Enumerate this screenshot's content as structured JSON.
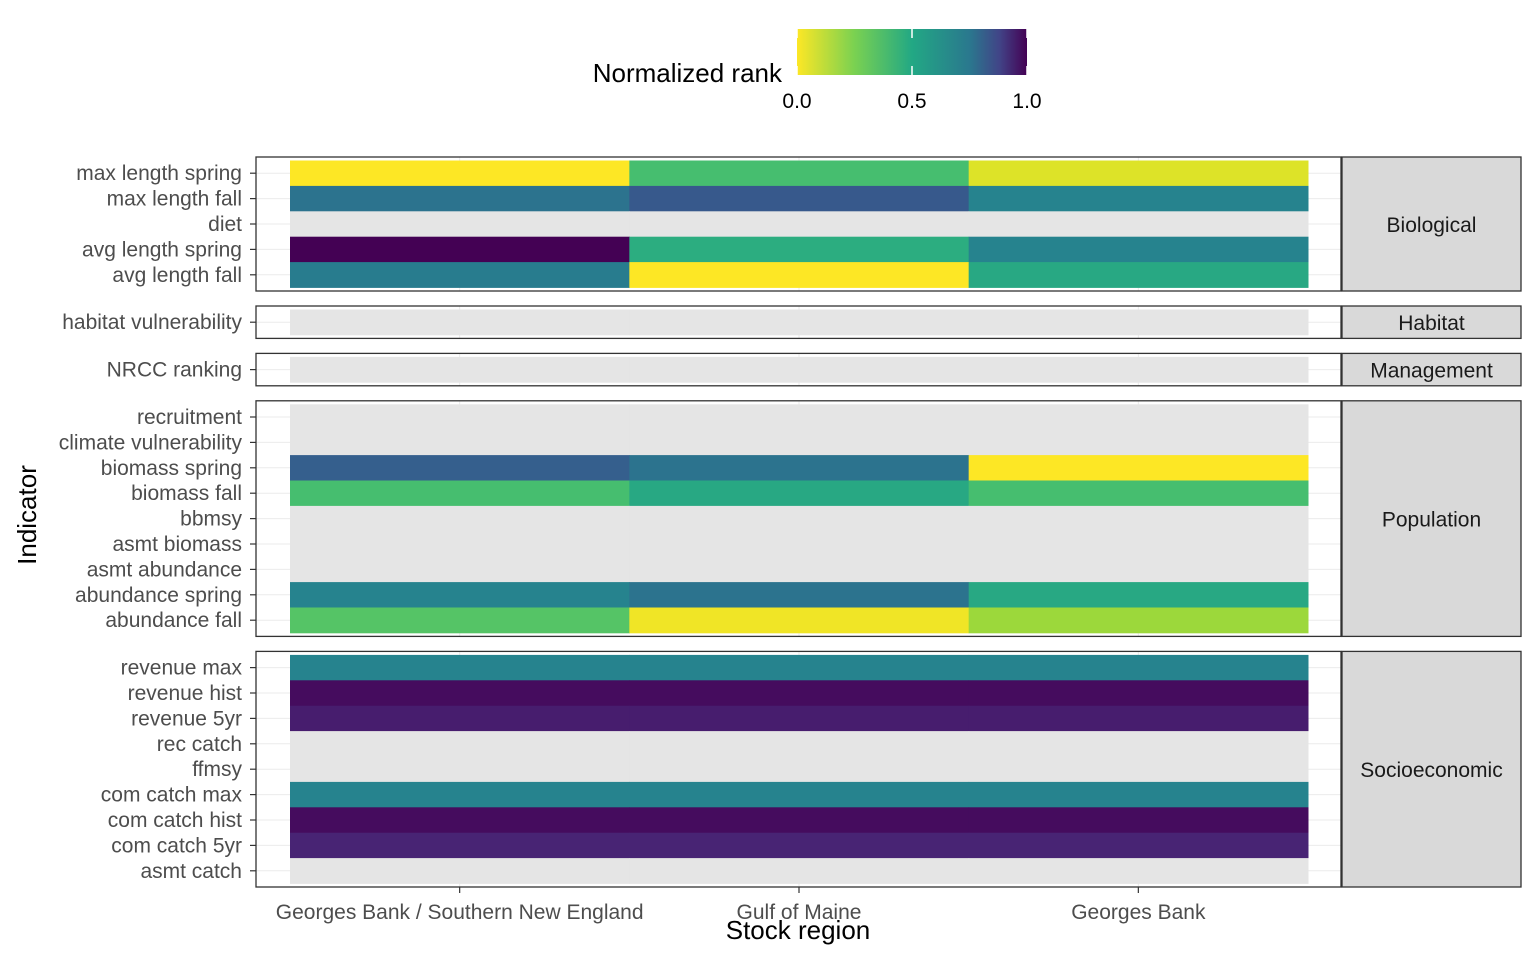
{
  "chart_data": {
    "type": "heatmap",
    "xlabel": "Stock region",
    "ylabel": "Indicator",
    "legend": {
      "title": "Normalized rank",
      "position": "top",
      "ticks": [
        "0.0",
        "0.5",
        "1.0"
      ],
      "scale": "viridis (reversed)",
      "range": [
        0,
        1
      ]
    },
    "missing_color": "#e5e5e5",
    "categories": [
      "Georges Bank / Southern New England",
      "Gulf of Maine",
      "Georges Bank"
    ],
    "facets": [
      {
        "label": "Biological",
        "rows": [
          {
            "label": "max length spring",
            "values": [
              0.0,
              0.3,
              0.05
            ]
          },
          {
            "label": "max length fall",
            "values": [
              0.62,
              0.72,
              0.55
            ]
          },
          {
            "label": "diet",
            "values": [
              null,
              null,
              null
            ]
          },
          {
            "label": "avg length spring",
            "values": [
              1.0,
              0.38,
              0.55
            ]
          },
          {
            "label": "avg length fall",
            "values": [
              0.58,
              0.0,
              0.4
            ]
          }
        ]
      },
      {
        "label": "Habitat",
        "rows": [
          {
            "label": "habitat vulnerability",
            "values": [
              null,
              null,
              null
            ]
          }
        ]
      },
      {
        "label": "Management",
        "rows": [
          {
            "label": "NRCC ranking",
            "values": [
              null,
              null,
              null
            ]
          }
        ]
      },
      {
        "label": "Population",
        "rows": [
          {
            "label": "recruitment",
            "values": [
              null,
              null,
              null
            ]
          },
          {
            "label": "climate vulnerability",
            "values": [
              null,
              null,
              null
            ]
          },
          {
            "label": "biomass spring",
            "values": [
              0.7,
              0.62,
              0.0
            ]
          },
          {
            "label": "biomass fall",
            "values": [
              0.3,
              0.4,
              0.3
            ]
          },
          {
            "label": "bbmsy",
            "values": [
              null,
              null,
              null
            ]
          },
          {
            "label": "asmt biomass",
            "values": [
              null,
              null,
              null
            ]
          },
          {
            "label": "asmt abundance",
            "values": [
              null,
              null,
              null
            ]
          },
          {
            "label": "abundance spring",
            "values": [
              0.55,
              0.62,
              0.4
            ]
          },
          {
            "label": "abundance fall",
            "values": [
              0.27,
              0.02,
              0.15
            ]
          }
        ]
      },
      {
        "label": "Socioeconomic",
        "rows": [
          {
            "label": "revenue max",
            "values": [
              0.55,
              0.55,
              0.55
            ]
          },
          {
            "label": "revenue hist",
            "values": [
              0.97,
              0.97,
              0.97
            ]
          },
          {
            "label": "revenue 5yr",
            "values": [
              0.92,
              0.92,
              0.92
            ]
          },
          {
            "label": "rec catch",
            "values": [
              null,
              null,
              null
            ]
          },
          {
            "label": "ffmsy",
            "values": [
              null,
              null,
              null
            ]
          },
          {
            "label": "com catch max",
            "values": [
              0.55,
              0.55,
              0.55
            ]
          },
          {
            "label": "com catch hist",
            "values": [
              0.97,
              0.97,
              0.97
            ]
          },
          {
            "label": "com catch 5yr",
            "values": [
              0.9,
              0.9,
              0.9
            ]
          },
          {
            "label": "asmt catch",
            "values": [
              null,
              null,
              null
            ]
          }
        ]
      }
    ]
  }
}
